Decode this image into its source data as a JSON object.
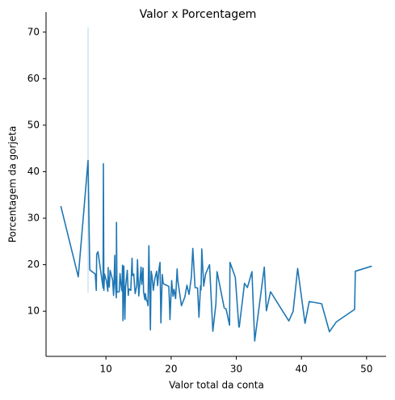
{
  "chart_data": {
    "type": "line",
    "title": "Valor x Porcentagem",
    "x_label": "Valor total da conta",
    "y_label": "Porcentagem da gorjeta",
    "xlim": [
      0.8,
      53
    ],
    "ylim": [
      0.3,
      74.3
    ],
    "xticks": [
      10,
      20,
      30,
      40,
      50
    ],
    "yticks": [
      10,
      20,
      30,
      40,
      50,
      60,
      70
    ],
    "series": [
      {
        "name": "Porcentagem da gorjeta",
        "color": "#1f77b4",
        "x": [
          3.07,
          5.75,
          7.25,
          7.51,
          8.35,
          8.51,
          8.58,
          8.77,
          9.55,
          9.6,
          9.68,
          9.78,
          10.07,
          10.29,
          10.33,
          10.34,
          10.51,
          10.63,
          11.02,
          11.17,
          11.24,
          11.35,
          11.38,
          11.59,
          11.61,
          11.69,
          12.03,
          12.16,
          12.26,
          12.43,
          12.54,
          12.6,
          12.69,
          12.74,
          12.9,
          13.0,
          13.03,
          13.27,
          13.42,
          13.51,
          13.81,
          14.0,
          14.07,
          14.26,
          14.48,
          14.73,
          14.83,
          15.01,
          15.04,
          15.38,
          15.48,
          15.69,
          15.77,
          15.98,
          16.04,
          16.21,
          16.31,
          16.45,
          16.58,
          16.82,
          16.93,
          17.07,
          17.26,
          17.51,
          17.78,
          17.92,
          18.15,
          18.29,
          18.43,
          18.64,
          18.78,
          19.08,
          19.44,
          19.65,
          19.77,
          19.82,
          20.08,
          20.29,
          20.45,
          20.69,
          20.92,
          21.01,
          21.58,
          22.12,
          22.42,
          22.75,
          23.1,
          23.33,
          23.68,
          24.06,
          24.27,
          24.52,
          24.59,
          24.71,
          25.0,
          25.29,
          25.89,
          26.41,
          26.88,
          27.05,
          28.15,
          28.44,
          28.97,
          29.03,
          29.85,
          30.4,
          30.46,
          31.27,
          31.71,
          32.4,
          32.83,
          34.3,
          34.63,
          35.26,
          38.07,
          38.73,
          39.42,
          40.55,
          41.19,
          43.11,
          44.3,
          45.35,
          48.17,
          48.27,
          50.81
        ],
        "values": [
          32.6,
          17.4,
          42.4,
          18.9,
          18.0,
          14.5,
          22.3,
          22.8,
          15.0,
          41.7,
          14.5,
          18.0,
          16.5,
          14.3,
          19.4,
          17.8,
          15.2,
          18.8,
          16.7,
          13.4,
          16.0,
          22.0,
          17.6,
          12.9,
          29.1,
          14.1,
          14.2,
          18.1,
          16.3,
          14.4,
          19.9,
          8.0,
          15.8,
          19.7,
          8.3,
          15.4,
          15.4,
          18.8,
          13.4,
          14.8,
          14.5,
          21.4,
          17.7,
          18.0,
          13.8,
          15.5,
          21.1,
          14.1,
          13.3,
          19.5,
          15.8,
          19.3,
          14.2,
          12.5,
          13.8,
          12.3,
          12.3,
          11.2,
          24.1,
          6.0,
          18.6,
          17.6,
          14.5,
          17.1,
          18.6,
          15.5,
          19.2,
          20.5,
          7.5,
          17.9,
          16.0,
          15.7,
          15.5,
          15.3,
          10.6,
          8.2,
          16.6,
          13.2,
          14.7,
          12.7,
          19.1,
          16.8,
          11.2,
          13.1,
          15.6,
          13.6,
          17.3,
          23.5,
          15.1,
          15.0,
          8.7,
          15.5,
          14.6,
          23.4,
          15.4,
          18.0,
          20.0,
          5.7,
          11.6,
          18.5,
          10.7,
          10.5,
          7.0,
          20.5,
          17.3,
          6.6,
          6.6,
          16.0,
          15.1,
          18.5,
          3.6,
          19.5,
          10.1,
          14.2,
          7.9,
          10.0,
          19.2,
          7.4,
          12.1,
          11.6,
          5.6,
          7.7,
          10.4,
          18.6,
          19.7
        ],
        "ci_x": [
          7.25
        ],
        "ci_low": [
          14
        ],
        "ci_high": [
          71
        ]
      }
    ]
  }
}
